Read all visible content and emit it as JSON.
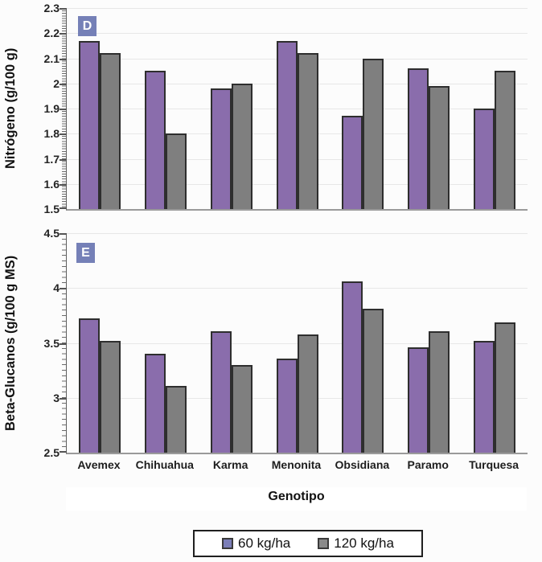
{
  "figure": {
    "xlabel": "Genotipo",
    "legend": {
      "items": [
        {
          "label": "60 kg/ha",
          "swatch_color": "#7b7eb8"
        },
        {
          "label": "120 kg/ha",
          "swatch_color": "#8a8a8a"
        }
      ]
    },
    "colors": {
      "panel_label_bg": "#7580b7",
      "bar_border": "#2e2e2e",
      "gridline": "#e7e7e7",
      "background": "#fcfcfc"
    }
  },
  "chart_data": [
    {
      "type": "bar",
      "panel_label": "D",
      "ylabel": "Nitrógeno (g/100 g)",
      "xlabel": "Genotipo",
      "categories": [
        "Avemex",
        "Chihuahua",
        "Karma",
        "Menonita",
        "Obsidiana",
        "Paramo",
        "Turquesa"
      ],
      "series": [
        {
          "name": "60 kg/ha",
          "color": "#8a6dac",
          "values": [
            2.17,
            2.05,
            1.98,
            2.17,
            1.87,
            2.06,
            1.9
          ]
        },
        {
          "name": "120 kg/ha",
          "color": "#7f7f7f",
          "values": [
            2.12,
            1.8,
            2.0,
            2.12,
            2.1,
            1.99,
            2.05
          ]
        }
      ],
      "ylim": [
        1.5,
        2.3
      ],
      "ytick_labels": [
        "2.3",
        "2.2",
        "2.1",
        "2",
        "1.9",
        "1.8",
        "1.7",
        "1.6",
        "1.5"
      ],
      "grid": true,
      "legend_position": "shared-bottom",
      "show_x_tick_labels": false
    },
    {
      "type": "bar",
      "panel_label": "E",
      "ylabel": "Beta-Glucanos (g/100 g MS)",
      "xlabel": "Genotipo",
      "categories": [
        "Avemex",
        "Chihuahua",
        "Karma",
        "Menonita",
        "Obsidiana",
        "Paramo",
        "Turquesa"
      ],
      "series": [
        {
          "name": "60 kg/ha",
          "color": "#8a6dac",
          "values": [
            3.72,
            3.4,
            3.61,
            3.36,
            4.06,
            3.46,
            3.52
          ]
        },
        {
          "name": "120 kg/ha",
          "color": "#7f7f7f",
          "values": [
            3.52,
            3.11,
            3.3,
            3.58,
            3.81,
            3.61,
            3.69
          ]
        }
      ],
      "ylim": [
        2.5,
        4.5
      ],
      "ytick_labels": [
        "4.5",
        "4",
        "3.5",
        "3",
        "2.5"
      ],
      "grid": true,
      "legend_position": "shared-bottom",
      "show_x_tick_labels": true
    }
  ]
}
